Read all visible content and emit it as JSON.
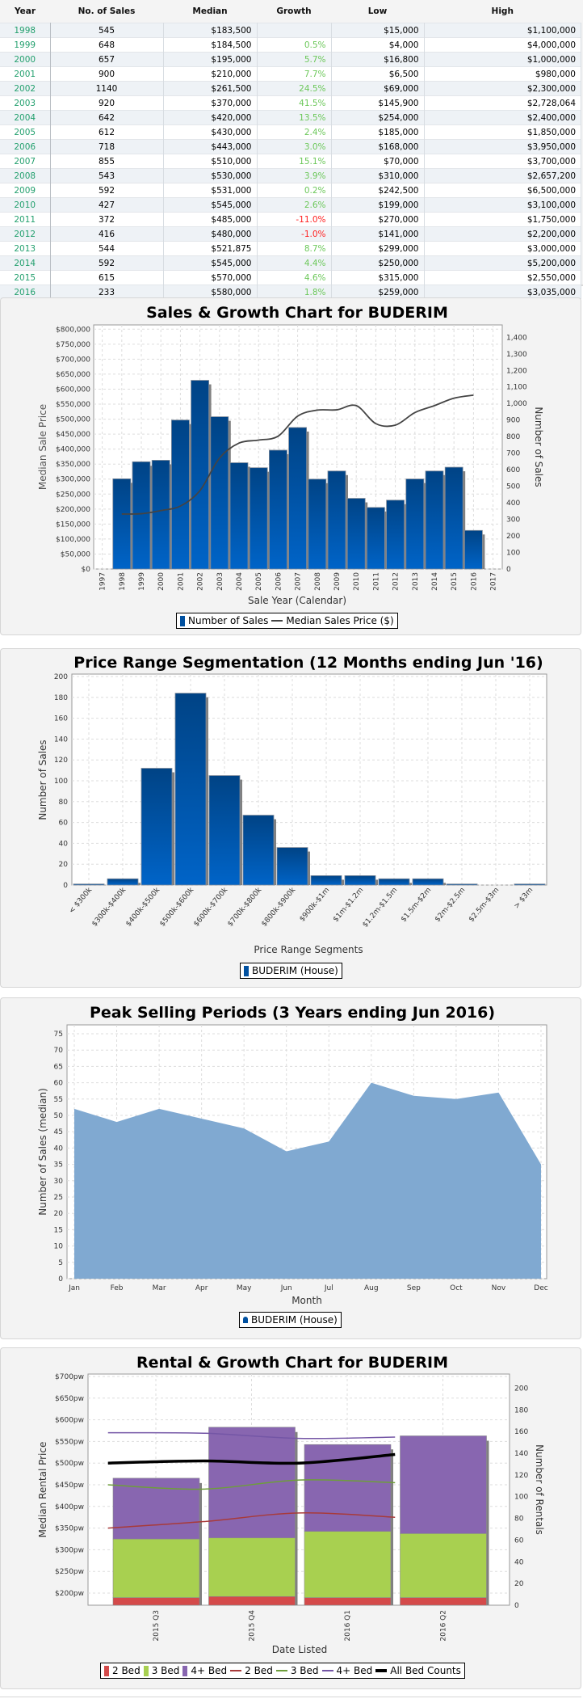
{
  "table": {
    "headers": [
      "Year",
      "No. of Sales",
      "Median",
      "Growth",
      "Low",
      "High"
    ],
    "rows": [
      [
        "1998",
        "545",
        "$183,500",
        "",
        "$15,000",
        "$1,100,000"
      ],
      [
        "1999",
        "648",
        "$184,500",
        "0.5%",
        "$4,000",
        "$4,000,000"
      ],
      [
        "2000",
        "657",
        "$195,000",
        "5.7%",
        "$16,800",
        "$1,000,000"
      ],
      [
        "2001",
        "900",
        "$210,000",
        "7.7%",
        "$6,500",
        "$980,000"
      ],
      [
        "2002",
        "1140",
        "$261,500",
        "24.5%",
        "$69,000",
        "$2,300,000"
      ],
      [
        "2003",
        "920",
        "$370,000",
        "41.5%",
        "$145,900",
        "$2,728,064"
      ],
      [
        "2004",
        "642",
        "$420,000",
        "13.5%",
        "$254,000",
        "$2,400,000"
      ],
      [
        "2005",
        "612",
        "$430,000",
        "2.4%",
        "$185,000",
        "$1,850,000"
      ],
      [
        "2006",
        "718",
        "$443,000",
        "3.0%",
        "$168,000",
        "$3,950,000"
      ],
      [
        "2007",
        "855",
        "$510,000",
        "15.1%",
        "$70,000",
        "$3,700,000"
      ],
      [
        "2008",
        "543",
        "$530,000",
        "3.9%",
        "$310,000",
        "$2,657,200"
      ],
      [
        "2009",
        "592",
        "$531,000",
        "0.2%",
        "$242,500",
        "$6,500,000"
      ],
      [
        "2010",
        "427",
        "$545,000",
        "2.6%",
        "$199,000",
        "$3,100,000"
      ],
      [
        "2011",
        "372",
        "$485,000",
        "-11.0%",
        "$270,000",
        "$1,750,000"
      ],
      [
        "2012",
        "416",
        "$480,000",
        "-1.0%",
        "$141,000",
        "$2,200,000"
      ],
      [
        "2013",
        "544",
        "$521,875",
        "8.7%",
        "$299,000",
        "$3,000,000"
      ],
      [
        "2014",
        "592",
        "$545,000",
        "4.4%",
        "$250,000",
        "$5,200,000"
      ],
      [
        "2015",
        "615",
        "$570,000",
        "4.6%",
        "$315,000",
        "$2,550,000"
      ],
      [
        "2016",
        "233",
        "$580,000",
        "1.8%",
        "$259,000",
        "$3,035,000"
      ]
    ],
    "colors": {
      "year": "#23a06e",
      "positive": "#6cc85a",
      "negative": "#ff2222"
    }
  },
  "chart_data": [
    {
      "type": "bar+line",
      "title": "Sales & Growth Chart for BUDERIM",
      "xlabel": "Sale Year (Calendar)",
      "ylabel_left": "Median Sale Price",
      "ylabel_right": "Number of Sales",
      "x_ticks": [
        "1997",
        "1998",
        "1999",
        "2000",
        "2001",
        "2002",
        "2003",
        "2004",
        "2005",
        "2006",
        "2007",
        "2008",
        "2009",
        "2010",
        "2011",
        "2012",
        "2013",
        "2014",
        "2015",
        "2016",
        "2017"
      ],
      "y_left_ticks": [
        "$0",
        "$50,000",
        "$100,000",
        "$150,000",
        "$200,000",
        "$250,000",
        "$300,000",
        "$350,000",
        "$400,000",
        "$450,000",
        "$500,000",
        "$550,000",
        "$600,000",
        "$650,000",
        "$700,000",
        "$750,000",
        "$800,000"
      ],
      "y_right_ticks": [
        "0",
        "100",
        "200",
        "300",
        "400",
        "500",
        "600",
        "700",
        "800",
        "900",
        "1,000",
        "1,100",
        "1,200",
        "1,300",
        "1,400"
      ],
      "ylim_left": [
        0,
        800000
      ],
      "ylim_right": [
        0,
        1400
      ],
      "x": [
        1998,
        1999,
        2000,
        2001,
        2002,
        2003,
        2004,
        2005,
        2006,
        2007,
        2008,
        2009,
        2010,
        2011,
        2012,
        2013,
        2014,
        2015,
        2016
      ],
      "series": [
        {
          "name": "Number of Sales",
          "kind": "bar",
          "axis": "right",
          "color": "#0050a0",
          "values": [
            545,
            648,
            657,
            900,
            1140,
            920,
            642,
            612,
            718,
            855,
            543,
            592,
            427,
            372,
            416,
            544,
            592,
            615,
            233
          ]
        },
        {
          "name": "Median Sales Price ($)",
          "kind": "line",
          "axis": "left",
          "color": "#444444",
          "values": [
            183500,
            184500,
            195000,
            210000,
            261500,
            370000,
            420000,
            430000,
            443000,
            510000,
            530000,
            531000,
            545000,
            485000,
            480000,
            521875,
            545000,
            570000,
            580000
          ]
        }
      ],
      "grid": true,
      "legend": "bottom"
    },
    {
      "type": "bar",
      "title": "Price Range Segmentation (12 Months ending Jun '16)",
      "xlabel": "Price Range Segments",
      "ylabel": "Number of Sales",
      "categories": [
        "< $300k",
        "$300k-$400k",
        "$400k-$500k",
        "$500k-$600k",
        "$600k-$700k",
        "$700k-$800k",
        "$800k-$900k",
        "$900k-$1m",
        "$1m-$1.2m",
        "$1.2m-$1.5m",
        "$1.5m-$2m",
        "$2m-$2.5m",
        "$2.5m-$3m",
        "> $3m"
      ],
      "series": [
        {
          "name": "BUDERIM (House)",
          "color": "#0050a0",
          "values": [
            1,
            6,
            112,
            184,
            105,
            67,
            36,
            9,
            9,
            6,
            6,
            1,
            0,
            1
          ]
        }
      ],
      "y_ticks": [
        "0",
        "20",
        "40",
        "60",
        "80",
        "100",
        "120",
        "140",
        "160",
        "180",
        "200"
      ],
      "ylim": [
        0,
        200
      ],
      "grid": true,
      "legend": "bottom"
    },
    {
      "type": "area",
      "title": "Peak Selling Periods (3 Years ending Jun 2016)",
      "xlabel": "Month",
      "ylabel": "Number of Sales (median)",
      "categories": [
        "Jan",
        "Feb",
        "Mar",
        "Apr",
        "May",
        "Jun",
        "Jul",
        "Aug",
        "Sep",
        "Oct",
        "Nov",
        "Dec"
      ],
      "series": [
        {
          "name": "BUDERIM (House)",
          "color": "#80a9d1",
          "values": [
            52,
            48,
            52,
            49,
            46,
            39,
            42,
            60,
            56,
            55,
            57,
            35
          ]
        }
      ],
      "y_ticks": [
        "0",
        "5",
        "10",
        "15",
        "20",
        "25",
        "30",
        "35",
        "40",
        "45",
        "50",
        "55",
        "60",
        "65",
        "70",
        "75"
      ],
      "ylim": [
        0,
        78
      ],
      "grid": true,
      "legend": "bottom"
    },
    {
      "type": "stacked-bar+line",
      "title": "Rental & Growth Chart for BUDERIM",
      "xlabel": "Date Listed",
      "ylabel_left": "Median Rental Price",
      "ylabel_right": "Number of Rentals",
      "categories": [
        "2015 Q3",
        "2015 Q4",
        "2016 Q1",
        "2016 Q2"
      ],
      "y_left_ticks": [
        "$200pw",
        "$250pw",
        "$300pw",
        "$350pw",
        "$400pw",
        "$450pw",
        "$500pw",
        "$550pw",
        "$600pw",
        "$650pw",
        "$700pw"
      ],
      "y_right_ticks": [
        "0",
        "20",
        "40",
        "60",
        "80",
        "100",
        "120",
        "140",
        "160",
        "180",
        "200"
      ],
      "ylim_left": [
        172,
        705
      ],
      "ylim_right": [
        0,
        213
      ],
      "bars": [
        {
          "name": "2 Bed",
          "color": "#d44a4a",
          "values": [
            7,
            8,
            7,
            7
          ]
        },
        {
          "name": "3 Bed",
          "color": "#a8d050",
          "values": [
            54,
            54,
            61,
            59
          ]
        },
        {
          "name": "4+ Bed",
          "color": "#8866b0",
          "values": [
            56,
            102,
            80,
            90
          ]
        }
      ],
      "lines": [
        {
          "name": "2 Bed",
          "color": "#a83a3a",
          "width": 1.5,
          "values": [
            350,
            365,
            385,
            375
          ]
        },
        {
          "name": "3 Bed",
          "color": "#6e9e3a",
          "width": 1.5,
          "values": [
            450,
            440,
            461,
            455
          ]
        },
        {
          "name": "4+ Bed",
          "color": "#7456a6",
          "width": 1.5,
          "values": [
            570,
            569,
            557,
            560
          ]
        },
        {
          "name": "All Bed Counts",
          "color": "#000000",
          "width": 3.5,
          "values": [
            500,
            505,
            500,
            520
          ]
        }
      ],
      "grid": true,
      "legend": "bottom"
    }
  ]
}
